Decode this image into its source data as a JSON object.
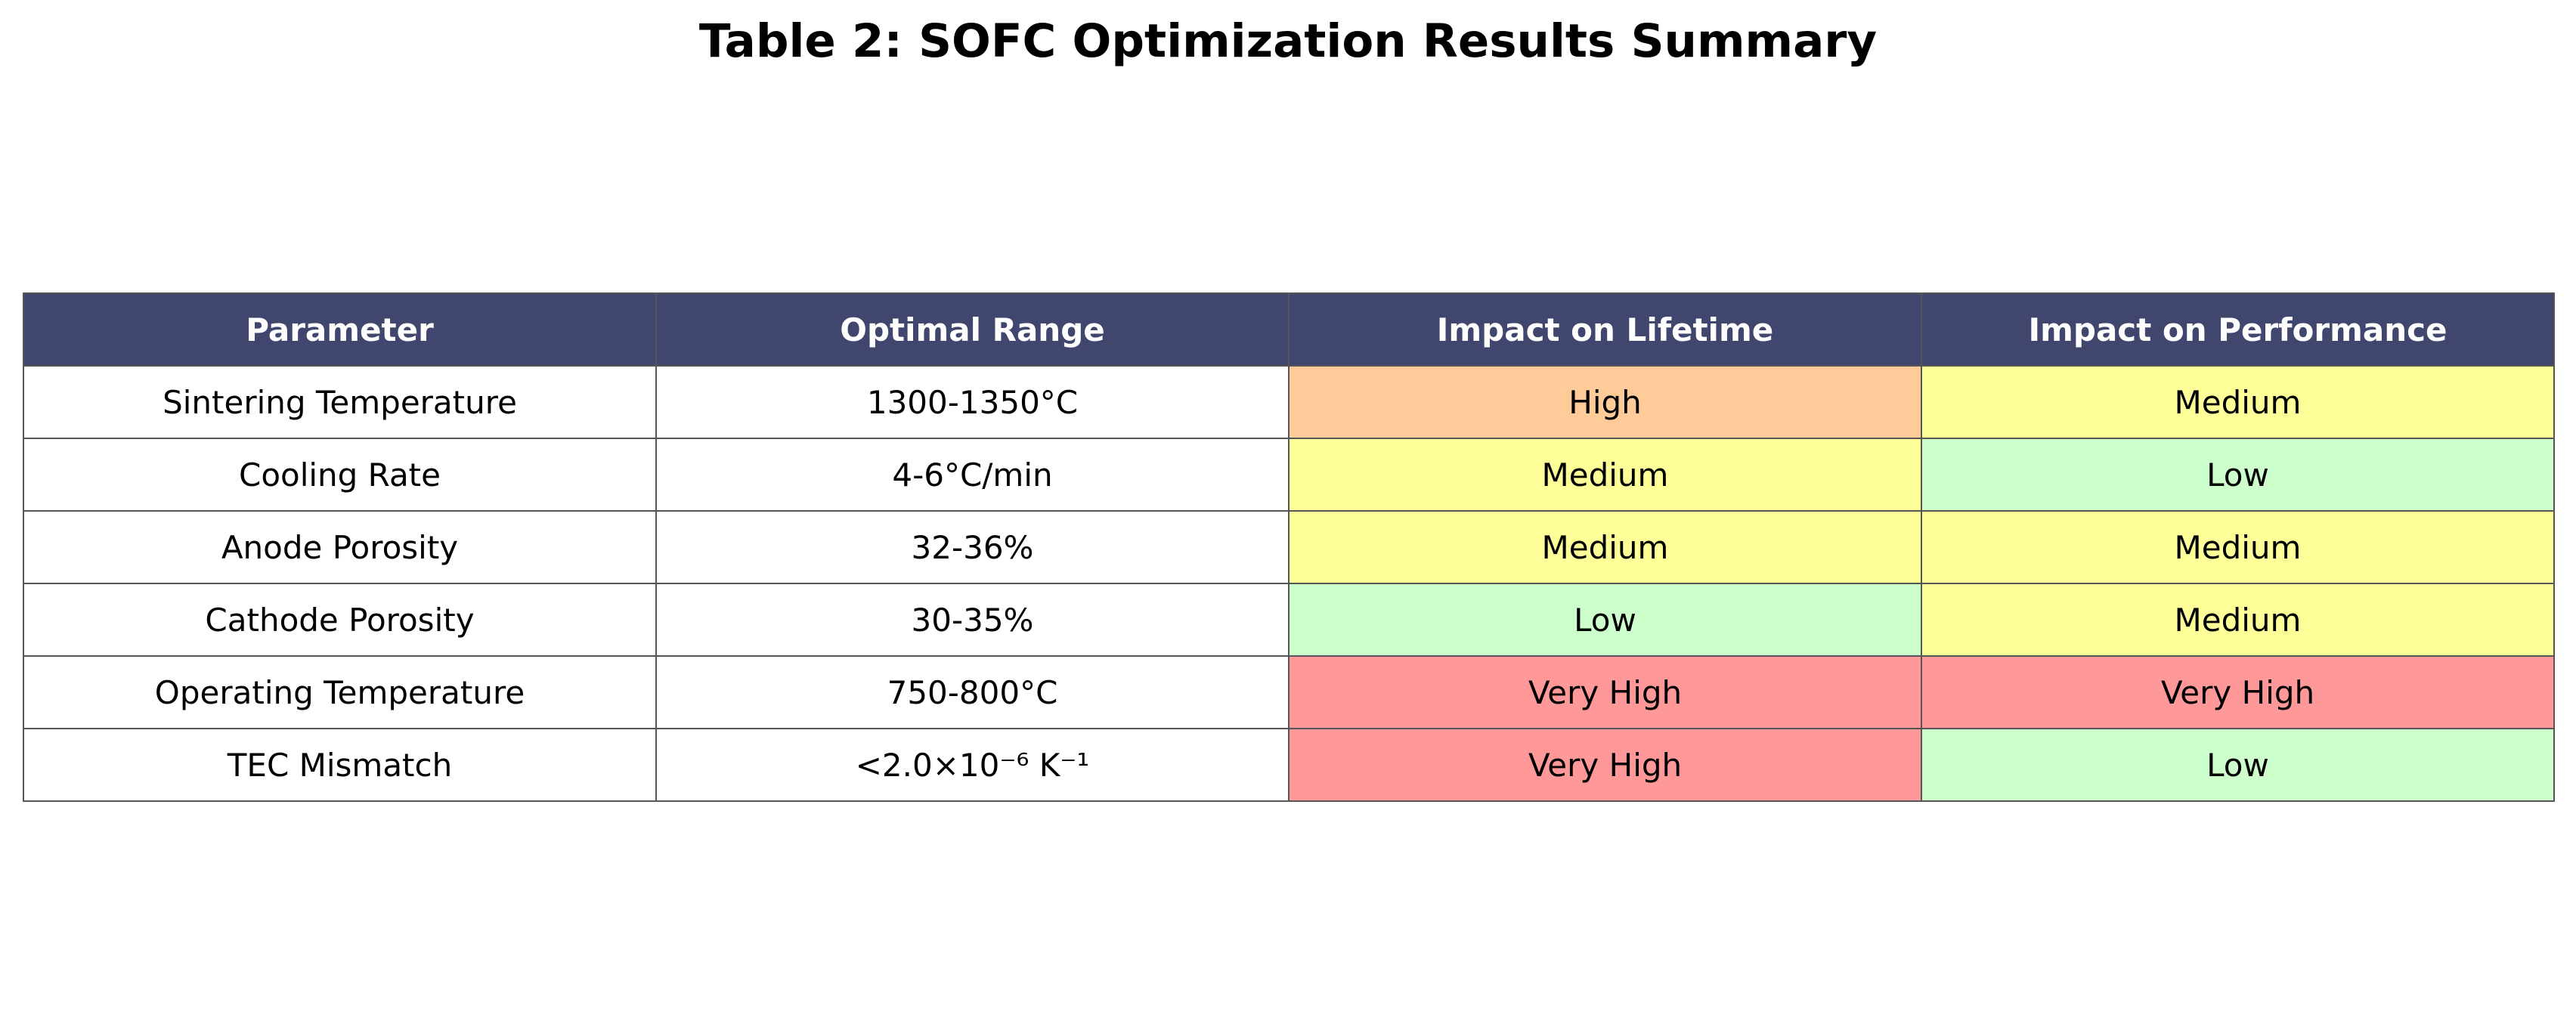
{
  "chart_data": {
    "type": "table",
    "title": "Table 2: SOFC Optimization Results Summary",
    "columns": [
      "Parameter",
      "Optimal Range",
      "Impact on Lifetime",
      "Impact on Performance"
    ],
    "rows": [
      [
        "Sintering Temperature",
        "1300-1350°C",
        "High",
        "Medium"
      ],
      [
        "Cooling Rate",
        "4-6°C/min",
        "Medium",
        "Low"
      ],
      [
        "Anode Porosity",
        "32-36%",
        "Medium",
        "Medium"
      ],
      [
        "Cathode Porosity",
        "30-35%",
        "Low",
        "Medium"
      ],
      [
        "Operating Temperature",
        "750-800°C",
        "Very High",
        "Very High"
      ],
      [
        "TEC Mismatch",
        "<2.0×10⁻⁶ K⁻¹",
        "Very High",
        "Low"
      ]
    ],
    "header_color": "#40466e",
    "level_colors": {
      "Low": "#ccffcc",
      "Medium": "#ffff99",
      "High": "#ffcc99",
      "Very High": "#ff9999"
    }
  }
}
